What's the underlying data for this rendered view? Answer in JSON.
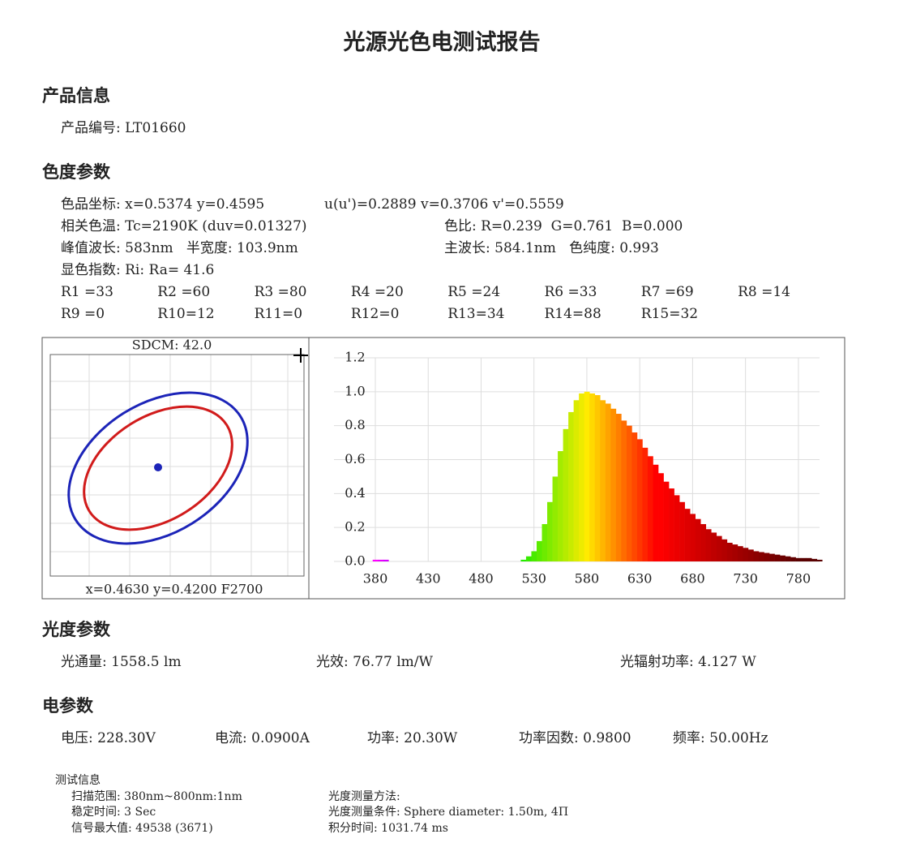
{
  "title": "光源光色电测试报告",
  "product": {
    "heading": "产品信息",
    "number": "产品编号: LT01660"
  },
  "color_params": {
    "heading": "色度参数",
    "rows": [
      [
        "色品坐标: x=0.5374 y=0.4595",
        "u(u')=0.2889 v=0.3706 v'=0.5559"
      ],
      [
        "相关色温: Tc=2190K (duv=0.01327)",
        "色比: R=0.239  G=0.761  B=0.000"
      ],
      [
        "峰值波长: 583nm   半宽度: 103.9nm",
        "主波长: 584.1nm   色纯度: 0.993"
      ],
      [
        "显色指数: Ri: Ra= 41.6"
      ]
    ],
    "ri": [
      [
        "R1 =33",
        "R2 =60",
        "R3 =80",
        "R4 =20",
        "R5 =24",
        "R6 =33",
        "R7 =69",
        "R8 =14"
      ],
      [
        "R9 =0",
        "R10=12",
        "R11=0",
        "R12=0",
        "R13=34",
        "R14=88",
        "R15=32"
      ]
    ]
  },
  "sdcm_panel": {
    "title": "SDCM:  42.0",
    "caption": "x=0.4630 y=0.4200 F2700"
  },
  "chart_data": {
    "type": "bar",
    "x": [
      380,
      385,
      390,
      395,
      400,
      405,
      410,
      415,
      420,
      425,
      430,
      435,
      440,
      445,
      450,
      455,
      460,
      465,
      470,
      475,
      480,
      485,
      490,
      495,
      500,
      505,
      510,
      515,
      520,
      525,
      530,
      535,
      540,
      545,
      550,
      555,
      560,
      565,
      570,
      575,
      580,
      585,
      590,
      595,
      600,
      605,
      610,
      615,
      620,
      625,
      630,
      635,
      640,
      645,
      650,
      655,
      660,
      665,
      670,
      675,
      680,
      685,
      690,
      695,
      700,
      705,
      710,
      715,
      720,
      725,
      730,
      735,
      740,
      745,
      750,
      755,
      760,
      765,
      770,
      775,
      780,
      785,
      790,
      795,
      800
    ],
    "values": [
      0.01,
      0.01,
      0.01,
      0,
      0,
      0,
      0,
      0,
      0,
      0,
      0,
      0,
      0,
      0,
      0,
      0,
      0,
      0,
      0,
      0,
      0,
      0,
      0,
      0,
      0,
      0,
      0,
      0,
      0.01,
      0.03,
      0.06,
      0.12,
      0.22,
      0.35,
      0.5,
      0.65,
      0.78,
      0.88,
      0.95,
      0.99,
      1.0,
      0.99,
      0.98,
      0.95,
      0.93,
      0.9,
      0.87,
      0.83,
      0.8,
      0.76,
      0.72,
      0.67,
      0.62,
      0.57,
      0.52,
      0.47,
      0.43,
      0.39,
      0.35,
      0.31,
      0.28,
      0.25,
      0.22,
      0.19,
      0.17,
      0.15,
      0.13,
      0.11,
      0.1,
      0.09,
      0.08,
      0.07,
      0.06,
      0.055,
      0.05,
      0.045,
      0.04,
      0.035,
      0.03,
      0.025,
      0.02,
      0.02,
      0.02,
      0.015,
      0.01
    ],
    "xlim": [
      380,
      800
    ],
    "xticks": [
      380,
      430,
      480,
      530,
      580,
      630,
      680,
      730,
      780
    ],
    "ylim": [
      0,
      1.2
    ],
    "yticks": [
      {
        "value": 0,
        "label": "0.0"
      },
      0.2,
      0.4,
      0.6,
      0.8,
      {
        "value": 1,
        "label": "1.0"
      },
      1.2
    ],
    "grid": true
  },
  "photometric": {
    "heading": "光度参数",
    "items": [
      "光通量: 1558.5 lm",
      "光效: 76.77 lm/W",
      "光辐射功率: 4.127 W"
    ]
  },
  "electrical": {
    "heading": "电参数",
    "items": [
      "电压: 228.30V",
      "电流: 0.0900A",
      "功率: 20.30W",
      "功率因数: 0.9800",
      "频率: 50.00Hz"
    ]
  },
  "test_info": {
    "heading": "测试信息",
    "left": [
      "扫描范围: 380nm~800nm:1nm",
      "稳定时间: 3 Sec",
      "信号最大值: 49538 (3671)"
    ],
    "right": [
      "光度测量方法:",
      "光度测量条件: Sphere diameter: 1.50m, 4Π",
      "积分时间: 1031.74 ms"
    ]
  }
}
